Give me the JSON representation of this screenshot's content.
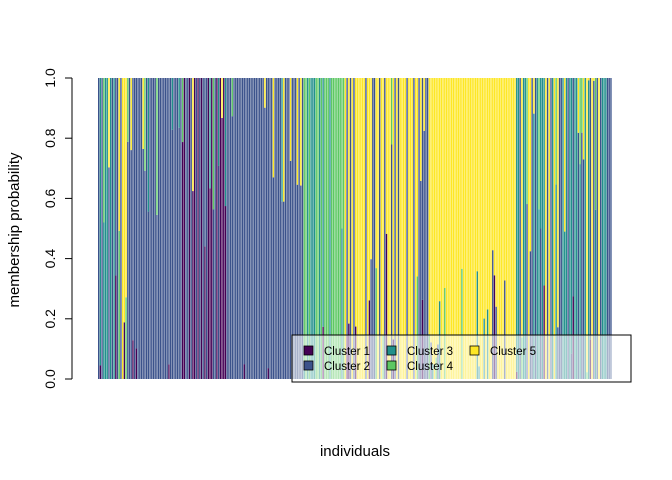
{
  "chart_data": {
    "type": "bar",
    "stacked": true,
    "title": "",
    "xlabel": "individuals",
    "ylabel": "membership probability",
    "ylim": [
      0,
      1
    ],
    "yticks": [
      "0.0",
      "0.2",
      "0.4",
      "0.6",
      "0.8",
      "1.0"
    ],
    "n_individuals": 300,
    "series": [
      {
        "name": "Cluster 1",
        "color": "#440154"
      },
      {
        "name": "Cluster 2",
        "color": "#3B528B"
      },
      {
        "name": "Cluster 3",
        "color": "#21908C"
      },
      {
        "name": "Cluster 4",
        "color": "#5DC863"
      },
      {
        "name": "Cluster 5",
        "color": "#FDE725"
      }
    ],
    "segments": [
      {
        "n": 10,
        "dominant": [
          "Cluster 2",
          "Cluster 3"
        ]
      },
      {
        "n": 10,
        "dominant": [
          "Cluster 2",
          "Cluster 5"
        ]
      },
      {
        "n": 28,
        "dominant": [
          "Cluster 2"
        ]
      },
      {
        "n": 30,
        "dominant": [
          "Cluster 1",
          "Cluster 2"
        ]
      },
      {
        "n": 42,
        "dominant": [
          "Cluster 2"
        ]
      },
      {
        "n": 16,
        "dominant": [
          "Cluster 2",
          "Cluster 3",
          "Cluster 4"
        ]
      },
      {
        "n": 8,
        "dominant": [
          "Cluster 4"
        ]
      },
      {
        "n": 50,
        "dominant": [
          "Cluster 2",
          "Cluster 5"
        ]
      },
      {
        "n": 50,
        "dominant": [
          "Cluster 5"
        ]
      },
      {
        "n": 56,
        "dominant": [
          "Cluster 2",
          "Cluster 3",
          "Cluster 5"
        ]
      }
    ],
    "legend": {
      "position": "bottom-right",
      "columns": 3,
      "frame": true
    }
  }
}
